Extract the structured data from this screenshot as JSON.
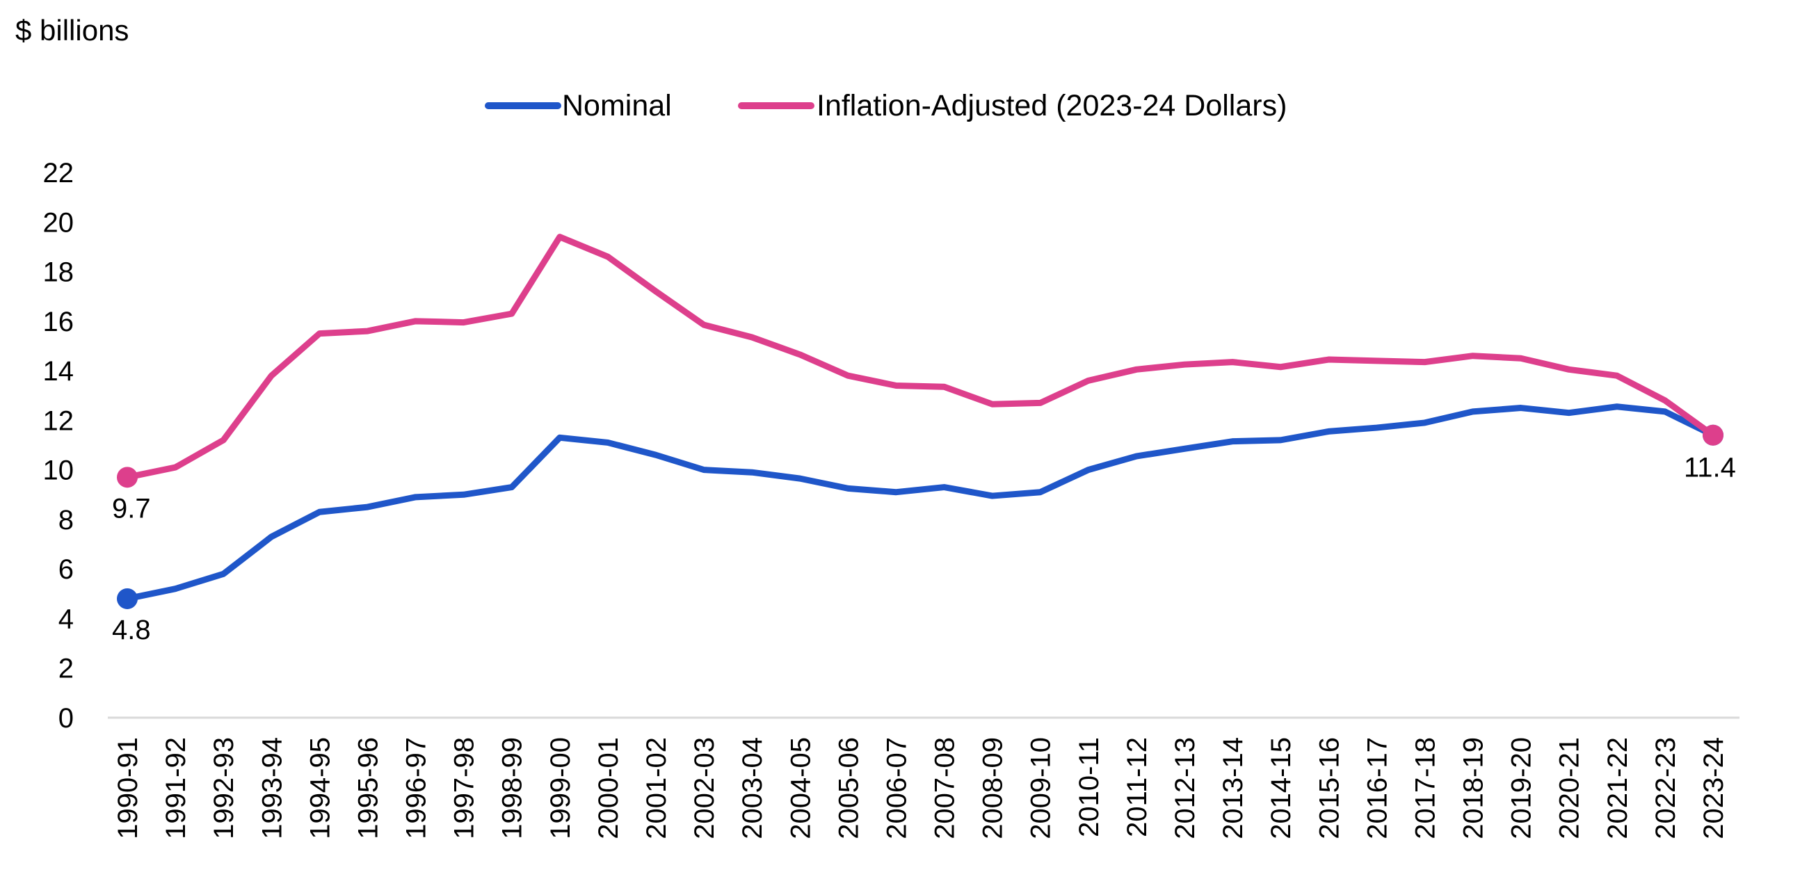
{
  "chart_data": {
    "type": "line",
    "unit_label": "$ billions",
    "x": [
      "1990-91",
      "1991-92",
      "1992-93",
      "1993-94",
      "1994-95",
      "1995-96",
      "1996-97",
      "1997-98",
      "1998-99",
      "1999-00",
      "2000-01",
      "2001-02",
      "2002-03",
      "2003-04",
      "2004-05",
      "2005-06",
      "2006-07",
      "2007-08",
      "2008-09",
      "2009-10",
      "2010-11",
      "2011-12",
      "2012-13",
      "2013-14",
      "2014-15",
      "2015-16",
      "2016-17",
      "2017-18",
      "2018-19",
      "2019-20",
      "2020-21",
      "2021-22",
      "2022-23",
      "2023-24"
    ],
    "y_ticks": [
      "0",
      "2",
      "4",
      "6",
      "8",
      "10",
      "12",
      "14",
      "16",
      "18",
      "20",
      "22"
    ],
    "ylim": [
      0,
      22
    ],
    "grid": false,
    "legend_position": "top-center",
    "series": [
      {
        "name": "Nominal",
        "color": "#1f56c9",
        "values": [
          4.8,
          5.2,
          5.8,
          7.3,
          8.3,
          8.5,
          8.9,
          9.0,
          9.3,
          11.3,
          11.1,
          10.6,
          10.0,
          9.9,
          9.65,
          9.25,
          9.1,
          9.3,
          8.95,
          9.1,
          10.0,
          10.55,
          10.85,
          11.15,
          11.2,
          11.55,
          11.7,
          11.9,
          12.35,
          12.5,
          12.3,
          12.55,
          12.35,
          11.4
        ],
        "endpoint_labels": {
          "first": "4.8",
          "last": "11.4"
        }
      },
      {
        "name": "Inflation-Adjusted (2023-24 Dollars)",
        "color": "#dd3f8c",
        "values": [
          9.7,
          10.1,
          11.2,
          13.8,
          15.5,
          15.6,
          16.0,
          15.95,
          16.3,
          19.4,
          18.6,
          17.2,
          15.85,
          15.35,
          14.65,
          13.8,
          13.4,
          13.35,
          12.65,
          12.7,
          13.6,
          14.05,
          14.25,
          14.35,
          14.15,
          14.45,
          14.4,
          14.35,
          14.6,
          14.5,
          14.05,
          13.8,
          12.8,
          11.4
        ],
        "endpoint_labels": {
          "first": "9.7",
          "last": "11.4"
        }
      }
    ]
  }
}
